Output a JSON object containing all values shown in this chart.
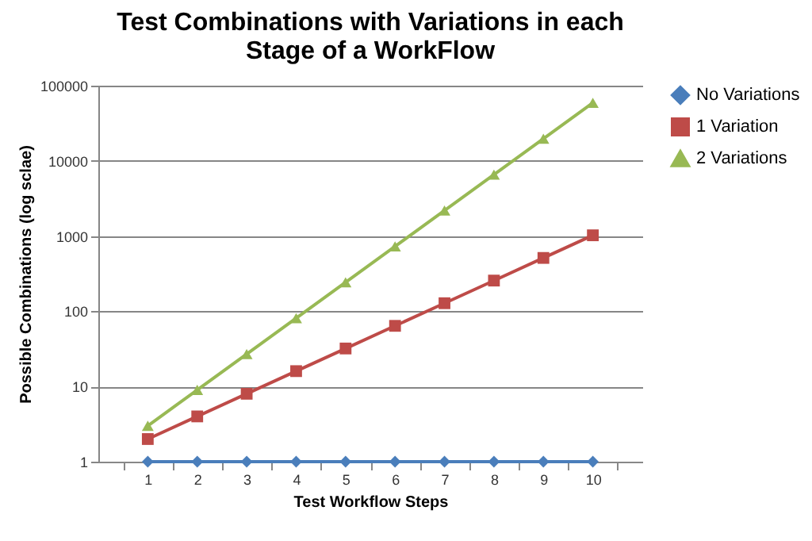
{
  "chart_data": {
    "type": "line",
    "title": "Test Combinations with Variations in each Stage of a WorkFlow",
    "xlabel": "Test Workflow Steps",
    "ylabel": "Possible Combinations (log sclae)",
    "categories": [
      "1",
      "2",
      "3",
      "4",
      "5",
      "6",
      "7",
      "8",
      "9",
      "10"
    ],
    "series": [
      {
        "name": "No Variations",
        "color": "#4a7ebb",
        "marker": "diamond",
        "values": [
          1,
          1,
          1,
          1,
          1,
          1,
          1,
          1,
          1,
          1
        ]
      },
      {
        "name": "1 Variation",
        "color": "#be4b48",
        "marker": "square",
        "values": [
          2,
          4,
          8,
          16,
          32,
          64,
          128,
          256,
          512,
          1024
        ]
      },
      {
        "name": "2 Variations",
        "color": "#98b954",
        "marker": "triangle",
        "values": [
          3,
          9,
          27,
          81,
          243,
          729,
          2187,
          6561,
          19683,
          59049
        ]
      }
    ],
    "log": "y",
    "ylim": [
      1,
      100000
    ],
    "yticks": [
      1,
      10,
      100,
      1000,
      10000,
      100000
    ],
    "grid": "y",
    "legend": "right"
  }
}
